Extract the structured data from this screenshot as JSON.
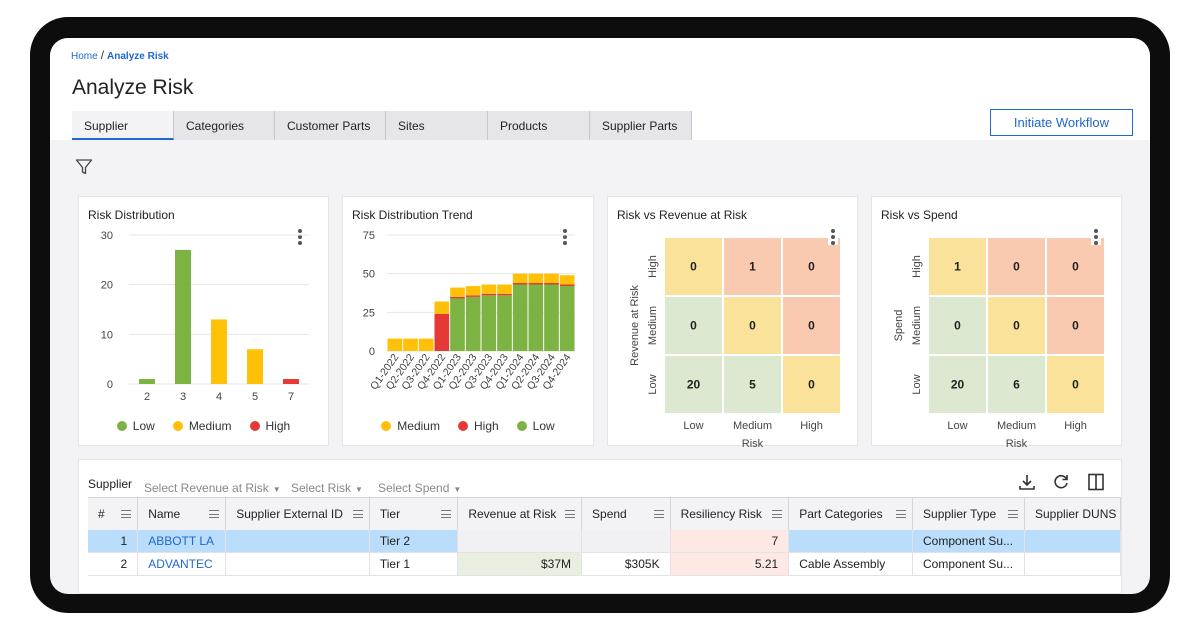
{
  "breadcrumb": {
    "home": "Home",
    "separator": "/",
    "current": "Analyze Risk"
  },
  "page_title": "Analyze Risk",
  "tabs": [
    "Supplier",
    "Categories",
    "Customer Parts",
    "Sites",
    "Products",
    "Supplier Parts"
  ],
  "active_tab": "Supplier",
  "workflow_button": "Initiate Workflow",
  "icons": {
    "filter": "filter-icon",
    "kebab": "kebab-menu-icon",
    "download": "download-icon",
    "refresh": "refresh-icon",
    "columns": "columns-icon"
  },
  "colors": {
    "accent": "#1f67d2",
    "low": "#7cb342",
    "medium": "#ffc107",
    "high": "#e53935",
    "heat_low": "#dce8d0",
    "heat_medium": "#fbe29a",
    "heat_high": "#f9c9b0"
  },
  "charts": {
    "risk_distribution": {
      "title": "Risk Distribution",
      "chart_data": {
        "type": "bar",
        "categories": [
          "2",
          "3",
          "4",
          "5",
          "7"
        ],
        "values": [
          1,
          27,
          13,
          7,
          1
        ],
        "colors": [
          "Low",
          "Low",
          "Medium",
          "Medium",
          "High"
        ],
        "yticks": [
          "0",
          "10",
          "20",
          "30"
        ],
        "ylim": [
          0,
          30
        ],
        "legend": [
          "Low",
          "Medium",
          "High"
        ]
      }
    },
    "risk_distribution_trend": {
      "title": "Risk Distribution Trend",
      "chart_data": {
        "type": "bar",
        "stacked": true,
        "categories": [
          "Q1-2022",
          "Q2-2022",
          "Q3-2022",
          "Q4-2022",
          "Q1-2023",
          "Q2-2023",
          "Q3-2023",
          "Q4-2023",
          "Q1-2024",
          "Q2-2024",
          "Q3-2024",
          "Q4-2024"
        ],
        "series": [
          {
            "name": "Medium",
            "values": [
              8,
              8,
              8,
              8,
              6,
              6,
              6,
              6,
              6,
              6,
              6,
              6
            ]
          },
          {
            "name": "High",
            "values": [
              0,
              0,
              0,
              24,
              1,
              1,
              1,
              1,
              1,
              1,
              1,
              1
            ]
          },
          {
            "name": "Low",
            "values": [
              0,
              0,
              0,
              0,
              34,
              35,
              36,
              36,
              43,
              43,
              43,
              42
            ]
          }
        ],
        "yticks": [
          "0",
          "25",
          "50",
          "75"
        ],
        "ylim": [
          0,
          75
        ],
        "legend": [
          "Medium",
          "High",
          "Low"
        ]
      }
    },
    "risk_vs_revenue": {
      "title": "Risk vs Revenue at Risk",
      "chart_data": {
        "type": "heatmap",
        "x": [
          "Low",
          "Medium",
          "High"
        ],
        "y": [
          "Low",
          "Medium",
          "High"
        ],
        "values": [
          [
            20,
            5,
            0
          ],
          [
            0,
            0,
            0
          ],
          [
            0,
            1,
            0
          ]
        ],
        "xlabel": "Risk",
        "ylabel": "Revenue at Risk"
      }
    },
    "risk_vs_spend": {
      "title": "Risk vs Spend",
      "chart_data": {
        "type": "heatmap",
        "x": [
          "Low",
          "Medium",
          "High"
        ],
        "y": [
          "Low",
          "Medium",
          "High"
        ],
        "values": [
          [
            20,
            6,
            0
          ],
          [
            0,
            0,
            0
          ],
          [
            1,
            0,
            0
          ]
        ],
        "xlabel": "Risk",
        "ylabel": "Spend"
      }
    }
  },
  "table_toolbar": {
    "label": "Supplier",
    "filters": [
      "Select Revenue at Risk",
      "Select Risk",
      "Select Spend"
    ]
  },
  "table": {
    "headers": [
      "#",
      "Name",
      "Supplier External ID",
      "Tier",
      "Revenue at Risk",
      "Spend",
      "Resiliency Risk",
      "Part Categories",
      "Supplier Type",
      "Supplier DUNS"
    ],
    "rows": [
      [
        "1",
        "ABBOTT LA",
        "",
        "Tier 2",
        "",
        "",
        "7",
        "",
        "Component Su...",
        ""
      ],
      [
        "2",
        "ADVANTEC",
        "",
        "Tier 1",
        "$37M",
        "$305K",
        "5.21",
        "Cable Assembly",
        "Component Su...",
        ""
      ]
    ]
  }
}
